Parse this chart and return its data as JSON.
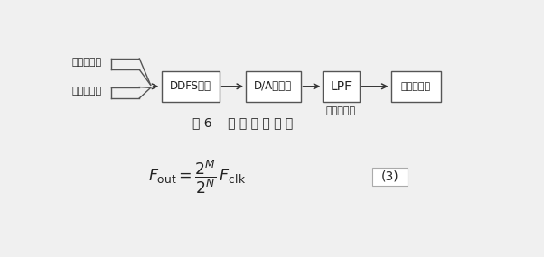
{
  "bg_color": "#f0f0f0",
  "box_color": "#ffffff",
  "box_edge_color": "#555555",
  "arrow_color": "#333333",
  "text_color": "#222222",
  "label_top1": "相位字输入",
  "label_top2": "频率字输入",
  "blocks": [
    "DDFS系统",
    "D/A转换器",
    "LPF",
    "正弦波输出"
  ],
  "sub_label": "低通滤波器",
  "caption": "图 6    系 统 结 构 框 图",
  "eq_label": "(3)",
  "line_color": "#555555",
  "divider_color": "#aaaaaa"
}
